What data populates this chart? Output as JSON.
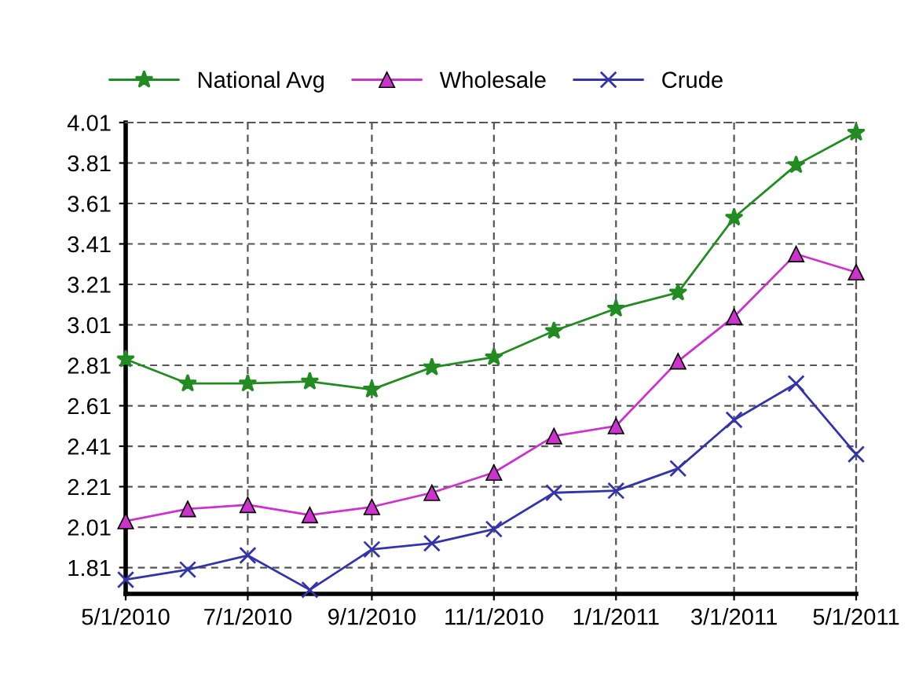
{
  "chart_data": {
    "type": "line",
    "x": [
      "2010-05-01",
      "2010-06-01",
      "2010-07-01",
      "2010-08-01",
      "2010-09-01",
      "2010-10-01",
      "2010-11-01",
      "2010-12-01",
      "2011-01-01",
      "2011-02-01",
      "2011-03-01",
      "2011-04-01",
      "2011-05-01"
    ],
    "series": [
      {
        "name": "National Avg",
        "color": "#228b22",
        "marker": "star",
        "values": [
          2.84,
          2.72,
          2.72,
          2.73,
          2.69,
          2.8,
          2.85,
          2.98,
          3.09,
          3.17,
          3.54,
          3.8,
          3.96
        ]
      },
      {
        "name": "Wholesale",
        "color": "#cc33cc",
        "marker": "triangle",
        "values": [
          2.04,
          2.1,
          2.12,
          2.07,
          2.11,
          2.18,
          2.28,
          2.46,
          2.51,
          2.83,
          3.05,
          3.36,
          3.27
        ]
      },
      {
        "name": "Crude",
        "color": "#3333aa",
        "marker": "cross",
        "values": [
          1.75,
          1.8,
          1.87,
          1.7,
          1.9,
          1.93,
          2.0,
          2.18,
          2.19,
          2.3,
          2.54,
          2.72,
          2.37
        ]
      }
    ],
    "xlim": [
      "2010-05-01",
      "2011-05-01"
    ],
    "xticks": [
      {
        "value": "2010-05-01",
        "label": "5/1/2010"
      },
      {
        "value": "2010-07-01",
        "label": "7/1/2010"
      },
      {
        "value": "2010-09-01",
        "label": "9/1/2010"
      },
      {
        "value": "2010-11-01",
        "label": "11/1/2010"
      },
      {
        "value": "2011-01-01",
        "label": "1/1/2011"
      },
      {
        "value": "2011-03-01",
        "label": "3/1/2011"
      },
      {
        "value": "2011-05-01",
        "label": "5/1/2011"
      }
    ],
    "ylim": [
      1.68,
      4.01
    ],
    "yticks": [
      1.81,
      2.01,
      2.21,
      2.41,
      2.61,
      2.81,
      3.01,
      3.21,
      3.41,
      3.61,
      3.81,
      4.01
    ],
    "grid": true,
    "legend": "top",
    "line_style": "solid"
  }
}
